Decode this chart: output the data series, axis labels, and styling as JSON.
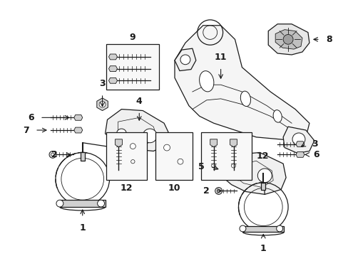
{
  "bg_color": "#ffffff",
  "fg_color": "#1a1a1a",
  "figsize": [
    4.89,
    3.6
  ],
  "dpi": 100,
  "lw": 0.9
}
